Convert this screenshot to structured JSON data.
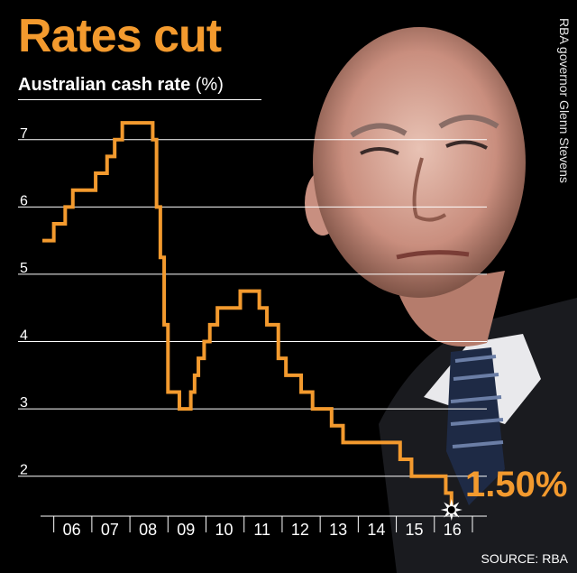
{
  "title": "Rates cut",
  "subtitle": "Australian cash rate",
  "subtitle_unit": "(%)",
  "caption": "RBA governor Glenn Stevens",
  "source": "SOURCE: RBA",
  "final_label": "1.50%",
  "colors": {
    "accent": "#f39a2e",
    "grid": "#ffffff",
    "background": "#000000"
  },
  "chart_data": {
    "type": "line",
    "title": "Rates cut",
    "ylabel": "Australian cash rate (%)",
    "xlabel": "",
    "x_ticks": [
      "06",
      "07",
      "08",
      "09",
      "10",
      "11",
      "12",
      "13",
      "14",
      "15",
      "16"
    ],
    "y_ticks": [
      2,
      3,
      4,
      5,
      6,
      7
    ],
    "xlim": [
      2005.7,
      2016.55
    ],
    "ylim": [
      1.5,
      7.6
    ],
    "grid": true,
    "series": [
      {
        "step": true,
        "x": [
          2005.7,
          2006.0,
          2006.3,
          2006.5,
          2006.8,
          2007.1,
          2007.4,
          2007.6,
          2007.8,
          2007.9,
          2008.0,
          2008.3,
          2008.6,
          2008.7,
          2008.8,
          2008.9,
          2009.0,
          2009.3,
          2009.5,
          2009.6,
          2009.7,
          2009.8,
          2009.95,
          2010.1,
          2010.3,
          2010.9,
          2011.15,
          2011.4,
          2011.6,
          2011.75,
          2011.9,
          2012.1,
          2012.3,
          2012.5,
          2012.8,
          2013.1,
          2013.3,
          2013.6,
          2014.0,
          2014.5,
          2015.1,
          2015.4,
          2015.9,
          2016.3,
          2016.45
        ],
        "values": [
          5.5,
          5.75,
          6.0,
          6.25,
          6.25,
          6.5,
          6.75,
          7.0,
          7.25,
          7.25,
          7.25,
          7.25,
          7.0,
          6.0,
          5.25,
          4.25,
          3.25,
          3.0,
          3.0,
          3.25,
          3.5,
          3.75,
          4.0,
          4.25,
          4.5,
          4.75,
          4.75,
          4.5,
          4.25,
          4.25,
          3.75,
          3.5,
          3.5,
          3.25,
          3.0,
          3.0,
          2.75,
          2.5,
          2.5,
          2.5,
          2.25,
          2.0,
          2.0,
          1.75,
          1.5
        ]
      }
    ]
  }
}
